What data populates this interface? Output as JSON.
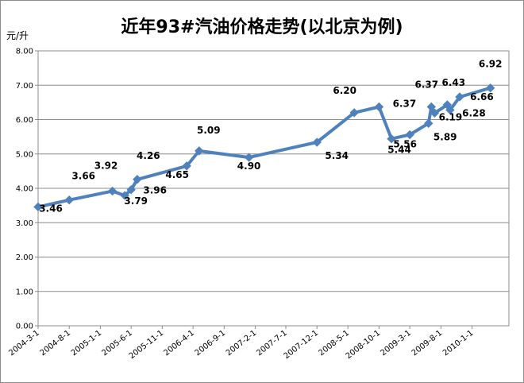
{
  "chart_data": {
    "type": "line",
    "title": "近年93#汽油价格走势(以北京为例)",
    "ylabel": "元/升",
    "xlabel": "",
    "ylim": [
      0,
      8
    ],
    "yticks": [
      "0.00",
      "1.00",
      "2.00",
      "3.00",
      "4.00",
      "5.00",
      "6.00",
      "7.00",
      "8.00"
    ],
    "xticks": [
      "2004-3-1",
      "2004-8-1",
      "2005-1-1",
      "2005-6-1",
      "2005-11-1",
      "2006-4-1",
      "2006-9-1",
      "2007-2-1",
      "2007-7-1",
      "2007-12-1",
      "2008-5-1",
      "2008-10-1",
      "2009-3-1",
      "2009-8-1",
      "2010-1-1"
    ],
    "grid": true,
    "series_color": "#4f81bd",
    "points": [
      {
        "date": "2004-03-01",
        "value": 3.46,
        "label": "3.46"
      },
      {
        "date": "2004-08-01",
        "value": 3.66,
        "label": "3.66"
      },
      {
        "date": "2005-03-01",
        "value": 3.92,
        "label": "3.92"
      },
      {
        "date": "2005-05-01",
        "value": 3.79,
        "label": "3.79"
      },
      {
        "date": "2005-06-01",
        "value": 3.96,
        "label": "3.96"
      },
      {
        "date": "2005-07-01",
        "value": 4.26,
        "label": "4.26"
      },
      {
        "date": "2006-03-01",
        "value": 4.65,
        "label": "4.65"
      },
      {
        "date": "2006-05-01",
        "value": 5.09,
        "label": "5.09"
      },
      {
        "date": "2007-01-01",
        "value": 4.9,
        "label": "4.90"
      },
      {
        "date": "2007-12-01",
        "value": 5.34,
        "label": "5.34"
      },
      {
        "date": "2008-06-01",
        "value": 6.2,
        "label": "6.20"
      },
      {
        "date": "2008-10-01",
        "value": 6.37,
        "label": "6.37"
      },
      {
        "date": "2008-12-01",
        "value": 5.44,
        "label": "5.44"
      },
      {
        "date": "2009-03-01",
        "value": 5.56,
        "label": "5.56"
      },
      {
        "date": "2009-06-01",
        "value": 5.89,
        "label": "5.89"
      },
      {
        "date": "2009-06-15",
        "value": 6.37,
        "label": "6.37"
      },
      {
        "date": "2009-07-01",
        "value": 6.19,
        "label": "6.19"
      },
      {
        "date": "2009-09-01",
        "value": 6.43,
        "label": "6.43"
      },
      {
        "date": "2009-09-15",
        "value": 6.28,
        "label": "6.28"
      },
      {
        "date": "2009-11-01",
        "value": 6.66,
        "label": "6.66"
      },
      {
        "date": "2010-04-01",
        "value": 6.92,
        "label": "6.92"
      }
    ]
  }
}
